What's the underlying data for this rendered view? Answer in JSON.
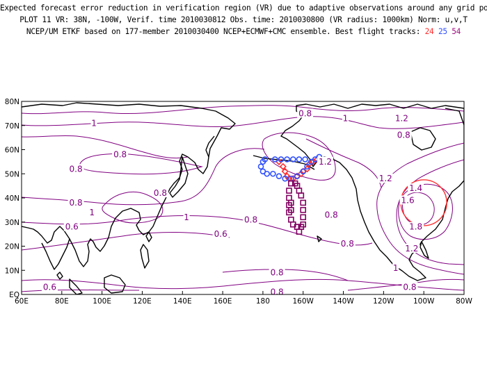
{
  "header": {
    "line1": "Expected forecast error reduction in verification region (VR) due to adaptive observations around any grid point.",
    "line2": "PLOT 11 VR: 38N, -100W, Verif. time 2010030812 Obs. time: 2010030800 (VR radius: 1000km) Norm: u,v,T",
    "line3_text": "NCEP/UM ETKF based on 177-member 2010030400 NCEP+ECMWF+CMC ensemble. Best flight tracks:",
    "tracks": [
      {
        "label": "24",
        "color": "#ff3030"
      },
      {
        "label": "25",
        "color": "#3050ff"
      },
      {
        "label": "54",
        "color": "#a01080"
      }
    ]
  },
  "map": {
    "lon_range": [
      60,
      280
    ],
    "lat_range": [
      0,
      80
    ],
    "x_ticks": [
      "60E",
      "80E",
      "100E",
      "120E",
      "140E",
      "160E",
      "180",
      "160W",
      "140W",
      "120W",
      "100W",
      "80W"
    ],
    "y_ticks": [
      "EQ",
      "10N",
      "20N",
      "30N",
      "40N",
      "50N",
      "60N",
      "70N",
      "80N"
    ],
    "contour_color": "#800080",
    "contour_labels": [
      {
        "text": "0.8",
        "lon": 201,
        "lat": 75
      },
      {
        "text": "1",
        "lon": 221,
        "lat": 73
      },
      {
        "text": "1.2",
        "lon": 249,
        "lat": 73
      },
      {
        "text": "1",
        "lon": 96,
        "lat": 71
      },
      {
        "text": "0.8",
        "lon": 109,
        "lat": 58
      },
      {
        "text": "0.8",
        "lon": 87,
        "lat": 52
      },
      {
        "text": "0.8",
        "lon": 129,
        "lat": 42
      },
      {
        "text": "0.8",
        "lon": 87,
        "lat": 38
      },
      {
        "text": "1",
        "lon": 95,
        "lat": 34
      },
      {
        "text": "1",
        "lon": 142,
        "lat": 32
      },
      {
        "text": "0.8",
        "lon": 174,
        "lat": 31
      },
      {
        "text": "0.6",
        "lon": 85,
        "lat": 28
      },
      {
        "text": "0.6",
        "lon": 159,
        "lat": 25
      },
      {
        "text": "0.8",
        "lon": 222,
        "lat": 21
      },
      {
        "text": "1.2",
        "lon": 241,
        "lat": 48
      },
      {
        "text": "1.4",
        "lon": 256,
        "lat": 44
      },
      {
        "text": "1.6",
        "lon": 252,
        "lat": 39
      },
      {
        "text": "1.8",
        "lon": 256,
        "lat": 28
      },
      {
        "text": "1.2",
        "lon": 254,
        "lat": 19
      },
      {
        "text": "1",
        "lon": 246,
        "lat": 11
      },
      {
        "text": "0.8",
        "lon": 214,
        "lat": 33
      },
      {
        "text": "1.2",
        "lon": 211,
        "lat": 55
      },
      {
        "text": "0.8",
        "lon": 187,
        "lat": 9
      },
      {
        "text": "0.8",
        "lon": 187,
        "lat": 1
      },
      {
        "text": "0.6",
        "lon": 74,
        "lat": 3
      },
      {
        "text": "0.8",
        "lon": 253,
        "lat": 3
      },
      {
        "text": "0.8",
        "lon": 250,
        "lat": 66
      }
    ],
    "verification_region": {
      "lon": 260,
      "lat": 38,
      "radius_km": 1000,
      "color": "#ff3030"
    },
    "flight_tracks": [
      {
        "label": "24",
        "color": "#ff3030",
        "marker": "diamond",
        "points": [
          [
            188,
            55
          ],
          [
            190,
            53
          ],
          [
            191,
            51
          ],
          [
            192,
            49
          ],
          [
            193,
            48
          ],
          [
            195,
            48
          ],
          [
            197,
            49
          ],
          [
            199,
            50
          ],
          [
            200,
            51
          ],
          [
            202,
            52
          ],
          [
            203,
            54
          ],
          [
            205,
            55
          ],
          [
            207,
            56
          ]
        ]
      },
      {
        "label": "25",
        "color": "#3050ff",
        "marker": "circle",
        "points": [
          [
            181,
            56
          ],
          [
            180,
            55
          ],
          [
            179,
            53
          ],
          [
            180,
            51
          ],
          [
            182,
            50
          ],
          [
            185,
            50
          ],
          [
            188,
            49
          ],
          [
            191,
            48
          ],
          [
            194,
            48
          ],
          [
            197,
            49
          ],
          [
            200,
            51
          ],
          [
            202,
            53
          ],
          [
            204,
            55
          ],
          [
            206,
            56
          ],
          [
            208,
            57
          ],
          [
            186,
            56
          ],
          [
            189,
            56
          ],
          [
            192,
            56
          ],
          [
            195,
            56
          ],
          [
            198,
            56
          ],
          [
            201,
            56
          ]
        ]
      },
      {
        "label": "54",
        "color": "#800060",
        "marker": "square",
        "points": [
          [
            194,
            46
          ],
          [
            193,
            43
          ],
          [
            193,
            40
          ],
          [
            193,
            37
          ],
          [
            193,
            34
          ],
          [
            194,
            31
          ],
          [
            195,
            29
          ],
          [
            197,
            28
          ],
          [
            198,
            26
          ],
          [
            199,
            28
          ],
          [
            200,
            29
          ],
          [
            200,
            32
          ],
          [
            200,
            35
          ],
          [
            200,
            38
          ],
          [
            199,
            41
          ],
          [
            198,
            43
          ],
          [
            197,
            45
          ],
          [
            196,
            46
          ],
          [
            194,
            38
          ],
          [
            194,
            35
          ]
        ]
      }
    ]
  }
}
